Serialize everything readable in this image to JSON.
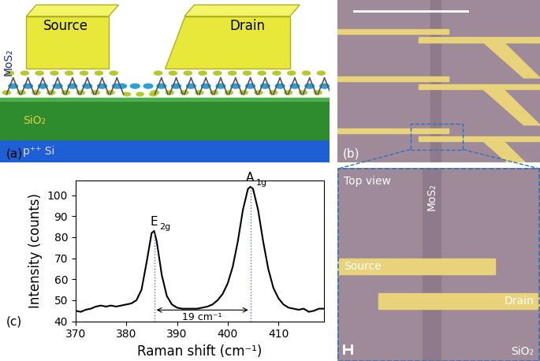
{
  "panel_labels": [
    "(a)",
    "(b)",
    "(c)"
  ],
  "schematic": {
    "electrodes": [
      "Source",
      "Drain"
    ],
    "layers": [
      "MoS₂",
      "SiO₂",
      "p⁺⁺ Si"
    ]
  },
  "micrograph": {
    "inset": {
      "title": "Top view",
      "flake": "MoS₂",
      "electrodes": [
        "Source",
        "Drain"
      ],
      "substrate": "SiO₂"
    }
  },
  "chart_data": {
    "type": "line",
    "x": [
      370,
      371,
      372,
      373,
      374,
      375,
      376,
      377,
      378,
      379,
      380,
      381,
      382,
      383,
      384,
      385,
      385.5,
      386,
      387,
      388,
      389,
      390,
      391,
      392,
      393,
      394,
      395,
      396,
      397,
      398,
      399,
      400,
      401,
      402,
      403,
      404,
      404.5,
      405,
      406,
      407,
      408,
      409,
      410,
      411,
      412,
      413,
      414,
      415,
      416,
      417,
      418,
      419
    ],
    "values": [
      45,
      44.5,
      45.5,
      46,
      47,
      47.5,
      47,
      47.5,
      47,
      47.5,
      48,
      48.5,
      50,
      55,
      68,
      82,
      83,
      78,
      62,
      52,
      48,
      46.5,
      46,
      46,
      46,
      46,
      46.5,
      47,
      48,
      50,
      53,
      58,
      66,
      78,
      93,
      103,
      104,
      103,
      93,
      78,
      65,
      56,
      51,
      48,
      46.5,
      46,
      45.5,
      46,
      44.5,
      45,
      46,
      46
    ],
    "color": "#000000",
    "xlabel": "Raman shift (cm⁻¹)",
    "ylabel": "Intensity (counts)",
    "xlim": [
      370,
      419
    ],
    "ylim": [
      40,
      107
    ],
    "xticks": [
      370,
      380,
      390,
      400,
      410
    ],
    "yticks": [
      40,
      50,
      60,
      70,
      80,
      90,
      100
    ],
    "peaks": [
      {
        "label": "E",
        "subscript": "2g",
        "x": 385.5,
        "y": 83
      },
      {
        "label": "A",
        "subscript": "1g",
        "x": 404.5,
        "y": 104
      }
    ],
    "separation": {
      "value": 19,
      "label": "19 cm⁻¹"
    }
  }
}
